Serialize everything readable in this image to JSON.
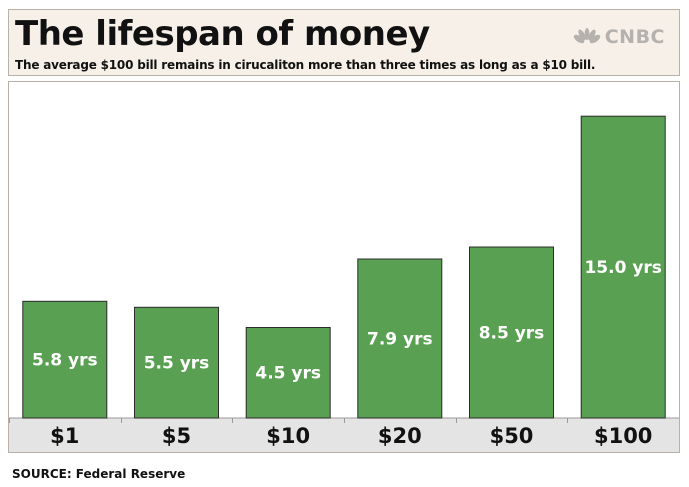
{
  "header": {
    "title": "The lifespan of money",
    "subtitle": "The average $100 bill remains in cirucaliton more than three times as long as a $10 bill.",
    "brand": {
      "name": "CNBC",
      "icon": "peacock-icon"
    }
  },
  "footer": {
    "source": "SOURCE: Federal Reserve"
  },
  "colors": {
    "bar": "#59a052",
    "bar_border": "#2c2c2c",
    "axis_band": "#e4e4e4"
  },
  "chart_data": {
    "type": "bar",
    "title": "The lifespan of money",
    "categories": [
      "$1",
      "$5",
      "$10",
      "$20",
      "$50",
      "$100"
    ],
    "values": [
      5.8,
      5.5,
      4.5,
      7.9,
      8.5,
      15.0
    ],
    "data_labels": [
      "5.8 yrs",
      "5.5 yrs",
      "4.5 yrs",
      "7.9 yrs",
      "8.5 yrs",
      "15.0 yrs"
    ],
    "ylim": [
      0,
      16.4
    ],
    "grid": false
  }
}
